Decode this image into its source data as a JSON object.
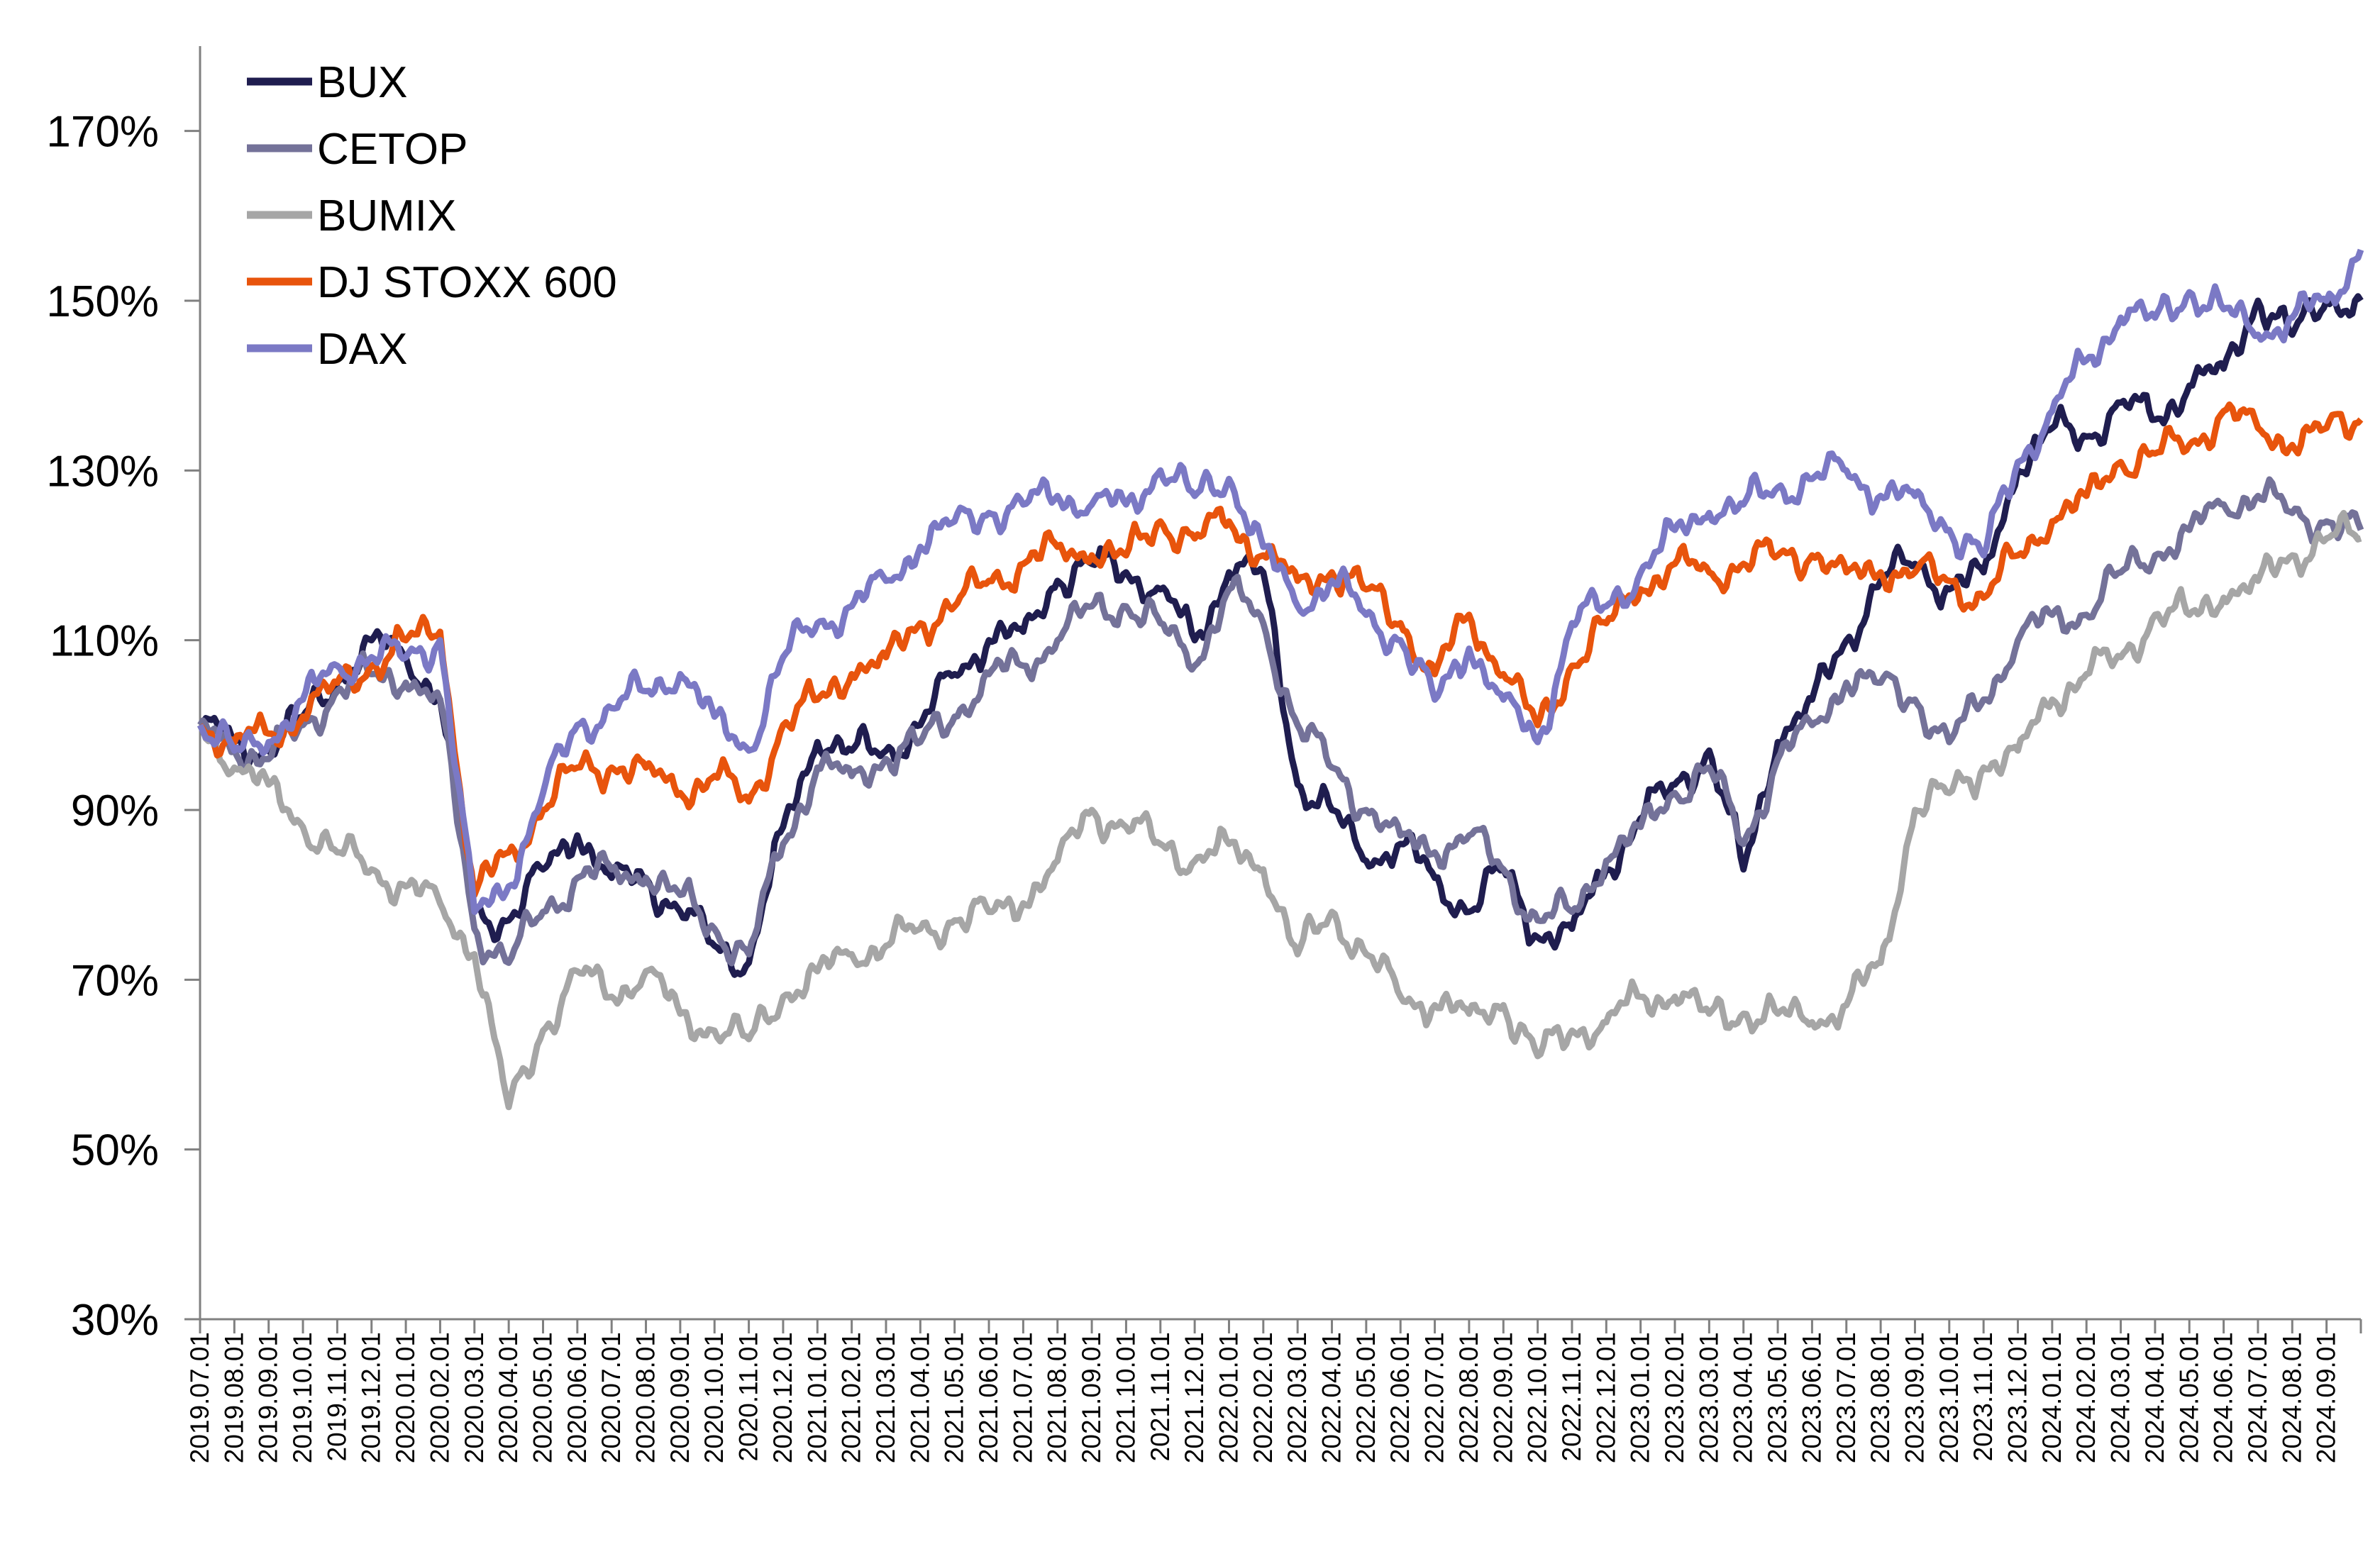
{
  "chart_data": {
    "type": "line",
    "title": "",
    "xlabel": "",
    "ylabel": "",
    "ylim": [
      30,
      180
    ],
    "y_unit": "%",
    "y_ticks": [
      30,
      50,
      70,
      90,
      110,
      130,
      150,
      170
    ],
    "y_tick_labels": [
      "30%",
      "50%",
      "70%",
      "90%",
      "110%",
      "130%",
      "150%",
      "170%"
    ],
    "grid": false,
    "legend_position": "top-left",
    "x_tick_labels": [
      "2019.07.01",
      "2019.08.01",
      "2019.09.01",
      "2019.10.01",
      "2019.11.01",
      "2019.12.01",
      "2020.01.01",
      "2020.02.01",
      "2020.03.01",
      "2020.04.01",
      "2020.05.01",
      "2020.06.01",
      "2020.07.01",
      "2020.08.01",
      "2020.09.01",
      "2020.10.01",
      "2020.11.01",
      "2020.12.01",
      "2021.01.01",
      "2021.02.01",
      "2021.03.01",
      "2021.04.01",
      "2021.05.01",
      "2021.06.01",
      "2021.07.01",
      "2021.08.01",
      "2021.09.01",
      "2021.10.01",
      "2021.11.01",
      "2021.12.01",
      "2022.01.01",
      "2022.02.01",
      "2022.03.01",
      "2022.04.01",
      "2022.05.01",
      "2022.06.01",
      "2022.07.01",
      "2022.08.01",
      "2022.09.01",
      "2022.10.01",
      "2022.11.01",
      "2022.12.01",
      "2023.01.01",
      "2023.02.01",
      "2023.03.01",
      "2023.04.01",
      "2023.05.01",
      "2023.06.01",
      "2023.07.01",
      "2023.08.01",
      "2023.09.01",
      "2023.10.01",
      "2023.11.01",
      "2023.12.01",
      "2024.01.01",
      "2024.02.01",
      "2024.03.01",
      "2024.04.01",
      "2024.05.01",
      "2024.06.01",
      "2024.07.01",
      "2024.08.01",
      "2024.09.01"
    ],
    "x": [
      "2019.07",
      "2019.08",
      "2019.09",
      "2019.10",
      "2019.11",
      "2019.12",
      "2020.01",
      "2020.02",
      "2020.03",
      "2020.04",
      "2020.05",
      "2020.06",
      "2020.07",
      "2020.08",
      "2020.09",
      "2020.10",
      "2020.11",
      "2020.12",
      "2021.01",
      "2021.02",
      "2021.03",
      "2021.04",
      "2021.05",
      "2021.06",
      "2021.07",
      "2021.08",
      "2021.09",
      "2021.10",
      "2021.11",
      "2021.12",
      "2022.01",
      "2022.02",
      "2022.03",
      "2022.04",
      "2022.05",
      "2022.06",
      "2022.07",
      "2022.08",
      "2022.09",
      "2022.10",
      "2022.11",
      "2022.12",
      "2023.01",
      "2023.02",
      "2023.03",
      "2023.04",
      "2023.05",
      "2023.06",
      "2023.07",
      "2023.08",
      "2023.09",
      "2023.10",
      "2023.11",
      "2023.12",
      "2024.01",
      "2024.02",
      "2024.03",
      "2024.04",
      "2024.05",
      "2024.06",
      "2024.07",
      "2024.08",
      "2024.09",
      "2024.10"
    ],
    "series": [
      {
        "name": "BUX",
        "color": "#1f1d4f",
        "values": [
          100,
          98,
          97,
          101,
          105,
          110,
          108,
          103,
          78,
          77,
          83,
          87,
          82,
          82,
          78,
          74,
          72,
          88,
          98,
          97,
          97,
          100,
          106,
          110,
          111,
          117,
          119,
          118,
          116,
          110,
          118,
          118,
          93,
          90,
          84,
          86,
          82,
          78,
          83,
          75,
          76,
          83,
          89,
          93,
          97,
          83,
          98,
          103,
          110,
          117,
          119,
          116,
          118,
          130,
          135,
          134,
          138,
          136,
          140,
          142,
          150,
          146,
          150,
          150
        ]
      },
      {
        "name": "CETOP",
        "color": "#747299",
        "values": [
          100,
          97,
          96,
          100,
          104,
          106,
          105,
          103,
          76,
          72,
          78,
          82,
          83,
          82,
          80,
          76,
          73,
          86,
          95,
          94,
          96,
          98,
          101,
          106,
          107,
          110,
          114,
          114,
          112,
          107,
          116,
          112,
          100,
          95,
          90,
          87,
          85,
          87,
          83,
          77,
          78,
          84,
          88,
          92,
          95,
          86,
          96,
          100,
          105,
          105,
          103,
          98,
          103,
          110,
          113,
          113,
          118,
          120,
          123,
          126,
          127,
          125,
          124,
          123
        ]
      },
      {
        "name": "BUMIX",
        "color": "#a6a6a6",
        "values": [
          100,
          95,
          93,
          88,
          85,
          83,
          81,
          79,
          73,
          55,
          64,
          71,
          68,
          71,
          66,
          64,
          63,
          68,
          71,
          73,
          74,
          76,
          77,
          78,
          79,
          84,
          90,
          88,
          86,
          84,
          86,
          83,
          73,
          78,
          73,
          68,
          67,
          66,
          67,
          61,
          64,
          65,
          68,
          68,
          66,
          66,
          66,
          65,
          67,
          72,
          90,
          92,
          95,
          97,
          103,
          106,
          108,
          113,
          113,
          115,
          117,
          120,
          122,
          122
        ]
      },
      {
        "name": "DJ STOXX 600",
        "color": "#e8540c",
        "values": [
          100,
          98,
          99,
          101,
          105,
          107,
          110,
          111,
          80,
          85,
          90,
          95,
          95,
          95,
          92,
          94,
          91,
          100,
          103,
          106,
          108,
          112,
          114,
          117,
          119,
          121,
          120,
          120,
          124,
          122,
          124,
          120,
          117,
          118,
          116,
          112,
          106,
          113,
          106,
          100,
          107,
          112,
          116,
          119,
          118,
          119,
          120,
          120,
          118,
          118,
          118,
          117,
          115,
          120,
          124,
          127,
          131,
          132,
          133,
          137,
          135,
          133,
          135,
          136
        ]
      },
      {
        "name": "DAX",
        "color": "#7b79c5",
        "values": [
          100,
          97,
          98,
          103,
          107,
          108,
          108,
          110,
          78,
          81,
          92,
          100,
          102,
          104,
          106,
          101,
          97,
          108,
          112,
          114,
          117,
          121,
          124,
          125,
          126,
          127,
          126,
          126,
          130,
          127,
          129,
          121,
          114,
          117,
          113,
          110,
          103,
          109,
          103,
          98,
          112,
          114,
          118,
          123,
          125,
          126,
          128,
          129,
          130,
          127,
          127,
          123,
          120,
          131,
          137,
          143,
          148,
          148,
          151,
          149,
          146,
          148,
          150,
          156
        ]
      }
    ]
  }
}
